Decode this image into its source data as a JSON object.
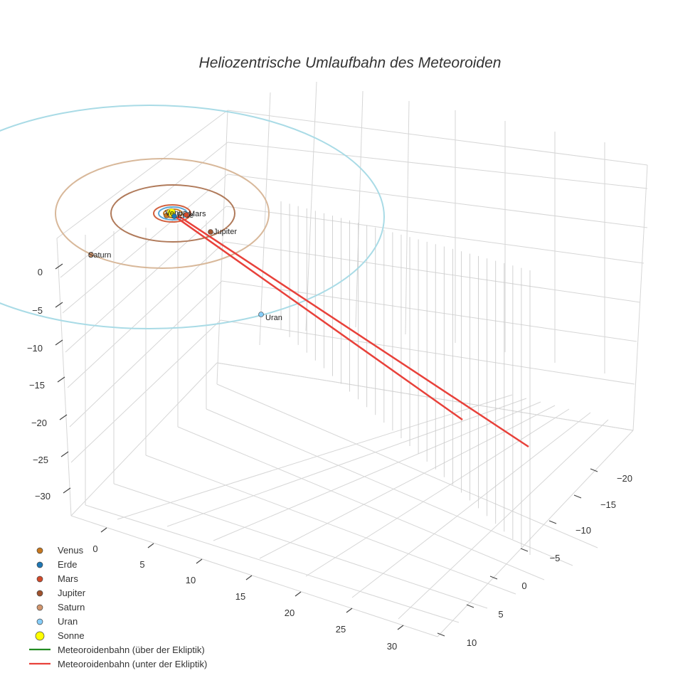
{
  "chart_data": {
    "type": "scatter",
    "title": "Heliozentrische Umlaufbahn des Meteoroiden",
    "axes": {
      "x": {
        "ticks": [
          0,
          5,
          10,
          15,
          20,
          25,
          30
        ]
      },
      "y": {
        "ticks": [
          -20,
          -15,
          -10,
          -5,
          0,
          5,
          10
        ]
      },
      "z": {
        "ticks": [
          0,
          -5,
          -10,
          -15,
          -20,
          -25,
          -30
        ]
      }
    },
    "grid": true,
    "legend_placement": "bottom-left",
    "planets": [
      {
        "name": "Venus",
        "color": "#c7781f",
        "orbit_color": "#c7781f",
        "label": "Venus"
      },
      {
        "name": "Erde",
        "color": "#1f77b4",
        "orbit_color": "#5aa7d8",
        "label": "Erde"
      },
      {
        "name": "Mars",
        "color": "#d24a2a",
        "orbit_color": "#d2603f",
        "label": "Mars"
      },
      {
        "name": "Jupiter",
        "color": "#a0522d",
        "orbit_color": "#b07a5a",
        "label": "Jupiter"
      },
      {
        "name": "Saturn",
        "color": "#d2966e",
        "orbit_color": "#d8b89a",
        "label": "Saturn"
      },
      {
        "name": "Uran",
        "color": "#87cefa",
        "orbit_color": "#a9dbe6",
        "label": "Uran"
      }
    ],
    "sun": {
      "name": "Sonne",
      "color": "#ffff00"
    },
    "meteoroid": [
      {
        "name": "Meteoroidenbahn (über der Ekliptik)",
        "color": "#228b22"
      },
      {
        "name": "Meteoroidenbahn (unter der Ekliptik)",
        "color": "#e8413a"
      }
    ]
  }
}
